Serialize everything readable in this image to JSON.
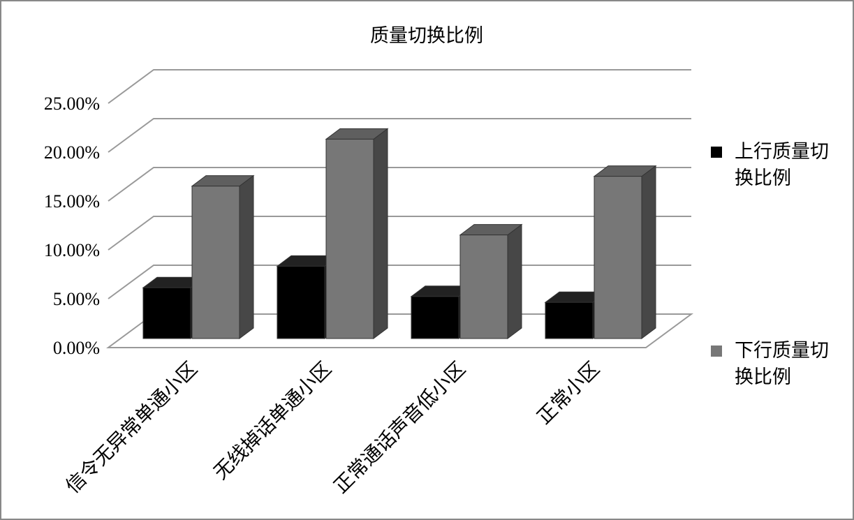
{
  "chart_data": {
    "type": "bar3d",
    "title": "质量切换比例",
    "categories": [
      "信令无异常单通小区",
      "无线掉话单通小区",
      "正常通话声音低小区",
      "正常小区"
    ],
    "series": [
      {
        "name": "上行质量切换比例",
        "color": "#000000",
        "values": [
          5.2,
          7.4,
          4.3,
          3.7
        ]
      },
      {
        "name": "下行质量切换比例",
        "color": "#777777",
        "values": [
          15.6,
          20.4,
          10.6,
          16.6
        ]
      }
    ],
    "ylim": [
      0,
      25
    ],
    "yticks": [
      {
        "value": 0,
        "label": "0.00%"
      },
      {
        "value": 5,
        "label": "5.00%"
      },
      {
        "value": 10,
        "label": "10.00%"
      },
      {
        "value": 15,
        "label": "15.00%"
      },
      {
        "value": 20,
        "label": "20.00%"
      },
      {
        "value": 25,
        "label": "25.00%"
      }
    ],
    "grid": true
  }
}
